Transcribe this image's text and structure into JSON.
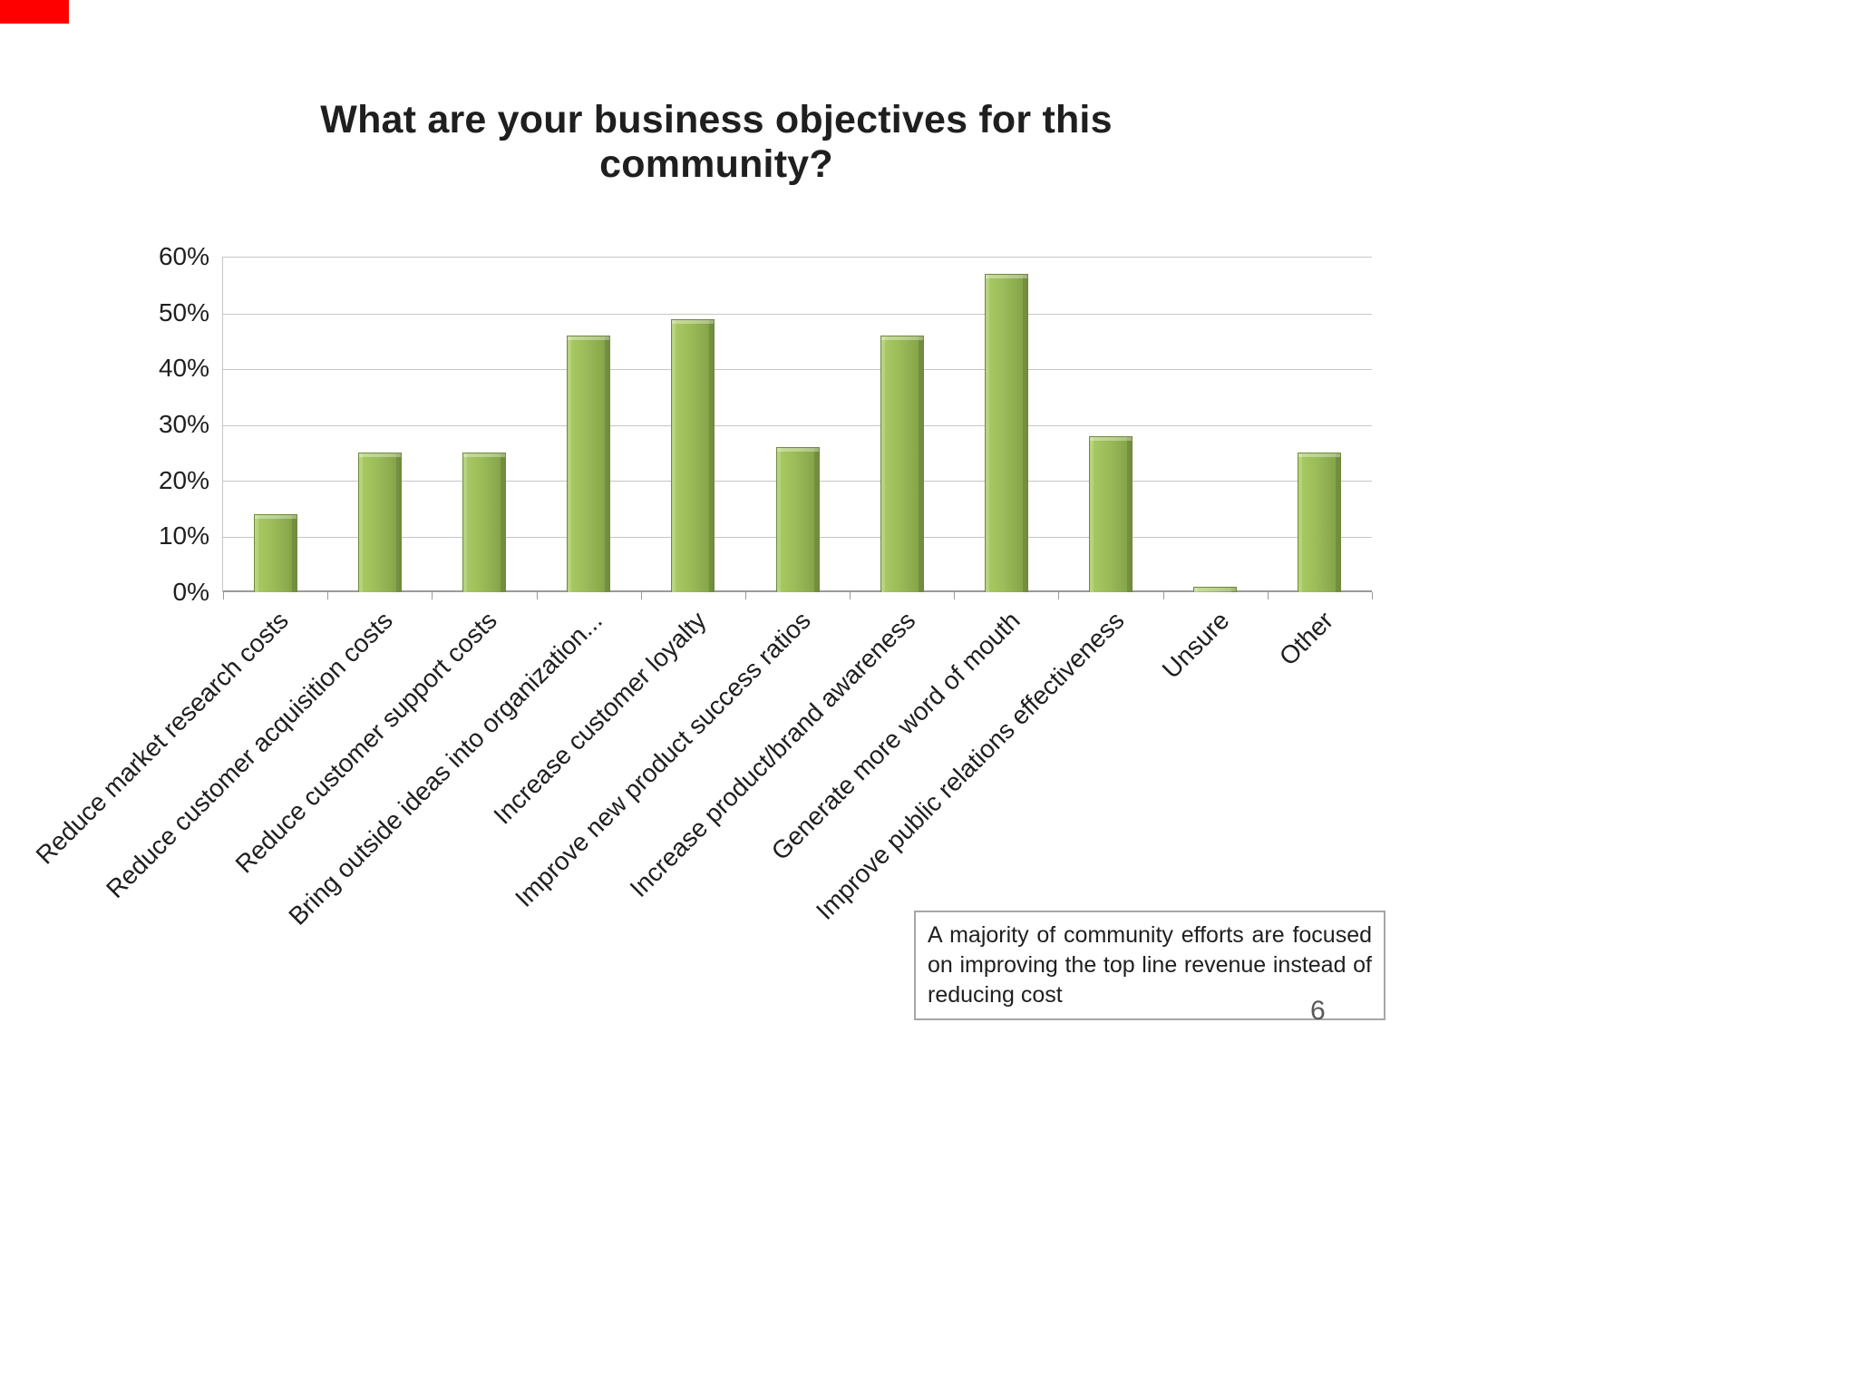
{
  "slide": {
    "title": "What are your business objectives for this community?",
    "annotation": "A majority of community efforts are focused on improving the top line revenue instead of reducing cost",
    "page_number": "6",
    "accent_color": "#9BBB59",
    "red_mark_color": "#FE0000"
  },
  "chart_data": {
    "type": "bar",
    "title": "What are your business objectives for this community?",
    "categories": [
      "Reduce market research costs",
      "Reduce customer acquisition costs",
      "Reduce customer support costs",
      "Bring outside ideas into organization...",
      "Increase customer loyalty",
      "Improve new product success ratios",
      "Increase product/brand awareness",
      "Generate more word of mouth",
      "Improve public relations effectiveness",
      "Unsure",
      "Other"
    ],
    "values": [
      14,
      25,
      25,
      46,
      49,
      26,
      46,
      57,
      28,
      1,
      25
    ],
    "xlabel": "",
    "ylabel": "",
    "ylim": [
      0,
      60
    ],
    "ytick_step": 10,
    "ytick_format": "percent",
    "grid": true,
    "legend": "none",
    "bar_color": "#9BBB59"
  }
}
